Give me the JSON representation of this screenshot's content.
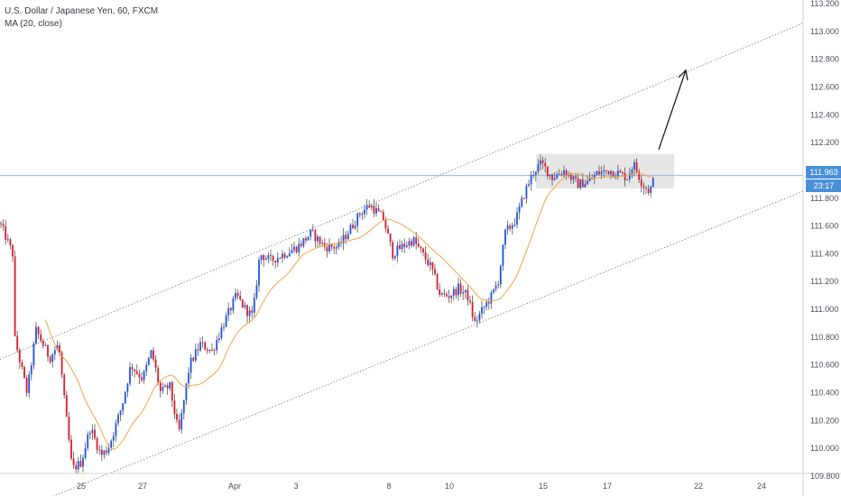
{
  "legend": {
    "title": "U.S. Dollar / Japanese Yen, 60, FXCM",
    "indicator": "MA (20, close)"
  },
  "price_badge": {
    "value": "111.963",
    "countdown": "23:17"
  },
  "chart_data": {
    "type": "candlestick",
    "ylim": [
      109.8,
      113.2
    ],
    "y_ticks": [
      "113.200",
      "113.000",
      "112.800",
      "112.600",
      "112.400",
      "112.200",
      "112.000",
      "111.800",
      "111.600",
      "111.400",
      "111.200",
      "111.000",
      "110.800",
      "110.600",
      "110.400",
      "110.200",
      "110.000",
      "109.800"
    ],
    "x_ticks": [
      "25",
      "27",
      "Apr",
      "3",
      "8",
      "10",
      "15",
      "17",
      "22",
      "24"
    ],
    "current_price": 111.963,
    "colors": {
      "up": "#1e53e5",
      "down": "#e0182b",
      "wick": "#555555",
      "ma": "#f5a548",
      "price_line": "#90b8e8",
      "channel": "#888888",
      "arrow": "#1a1d26",
      "box": "#d5d5d5"
    },
    "price_path": [
      [
        0,
        111.62
      ],
      [
        14,
        111.4
      ],
      [
        16,
        110.8
      ],
      [
        30,
        110.4
      ],
      [
        40,
        110.85
      ],
      [
        55,
        110.65
      ],
      [
        65,
        110.75
      ],
      [
        72,
        110.3
      ],
      [
        80,
        109.85
      ],
      [
        90,
        109.9
      ],
      [
        100,
        110.15
      ],
      [
        112,
        109.95
      ],
      [
        120,
        110.0
      ],
      [
        135,
        110.3
      ],
      [
        145,
        110.6
      ],
      [
        158,
        110.5
      ],
      [
        168,
        110.7
      ],
      [
        178,
        110.4
      ],
      [
        188,
        110.45
      ],
      [
        198,
        110.1
      ],
      [
        210,
        110.6
      ],
      [
        222,
        110.75
      ],
      [
        235,
        110.7
      ],
      [
        248,
        110.9
      ],
      [
        262,
        111.1
      ],
      [
        272,
        111.0
      ],
      [
        280,
        110.95
      ],
      [
        288,
        111.4
      ],
      [
        300,
        111.35
      ],
      [
        315,
        111.4
      ],
      [
        330,
        111.45
      ],
      [
        345,
        111.55
      ],
      [
        360,
        111.45
      ],
      [
        375,
        111.45
      ],
      [
        390,
        111.6
      ],
      [
        400,
        111.7
      ],
      [
        410,
        111.75
      ],
      [
        418,
        111.7
      ],
      [
        425,
        111.65
      ],
      [
        435,
        111.4
      ],
      [
        445,
        111.45
      ],
      [
        458,
        111.5
      ],
      [
        468,
        111.4
      ],
      [
        478,
        111.3
      ],
      [
        488,
        111.1
      ],
      [
        498,
        111.1
      ],
      [
        508,
        111.15
      ],
      [
        518,
        111.1
      ],
      [
        526,
        110.9
      ],
      [
        535,
        111.0
      ],
      [
        545,
        111.1
      ],
      [
        552,
        111.2
      ],
      [
        560,
        111.55
      ],
      [
        572,
        111.65
      ],
      [
        582,
        111.85
      ],
      [
        592,
        112.0
      ],
      [
        600,
        112.05
      ],
      [
        612,
        111.95
      ],
      [
        625,
        112.0
      ],
      [
        640,
        111.9
      ],
      [
        652,
        111.92
      ],
      [
        662,
        111.98
      ],
      [
        675,
        112.0
      ],
      [
        685,
        111.98
      ],
      [
        695,
        111.95
      ],
      [
        702,
        112.05
      ],
      [
        712,
        111.9
      ],
      [
        720,
        111.85
      ],
      [
        726,
        111.96
      ]
    ]
  }
}
